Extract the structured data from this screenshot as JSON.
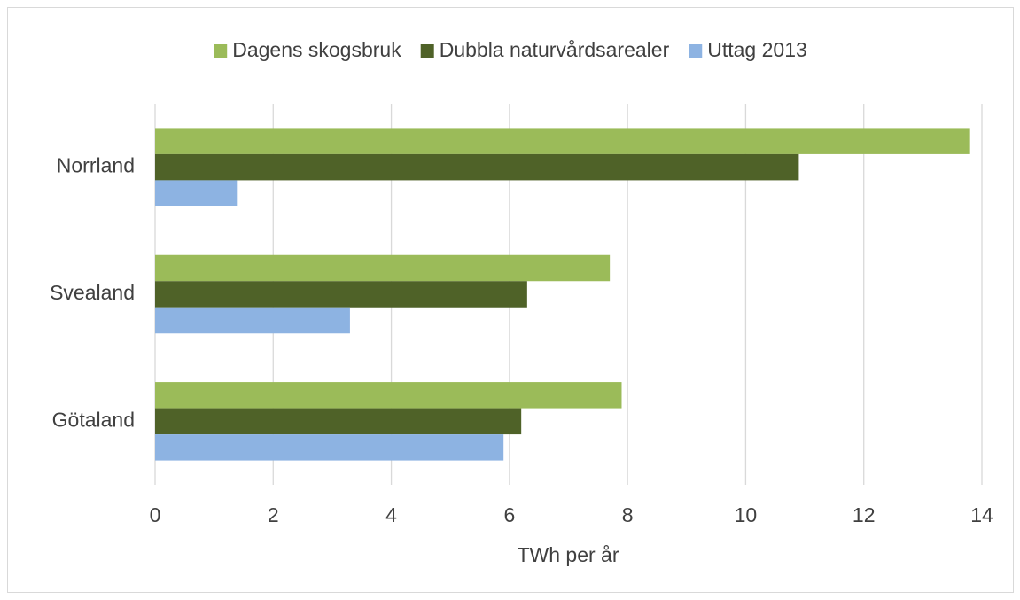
{
  "chart_data": {
    "type": "bar",
    "orientation": "horizontal",
    "categories": [
      "Norrland",
      "Svealand",
      "Götaland"
    ],
    "series": [
      {
        "name": "Dagens skogsbruk",
        "color": "#9bbb59",
        "values": [
          13.8,
          7.7,
          7.9
        ]
      },
      {
        "name": "Dubbla naturvårdsarealer",
        "color": "#4f6228",
        "values": [
          10.9,
          6.3,
          6.2
        ]
      },
      {
        "name": "Uttag 2013",
        "color": "#8db3e2",
        "values": [
          1.4,
          3.3,
          5.9
        ]
      }
    ],
    "xlabel": "TWh per år",
    "xlim": [
      0,
      14
    ],
    "xticks": [
      0,
      2,
      4,
      6,
      8,
      10,
      12,
      14
    ],
    "grid": true,
    "legend": "top"
  }
}
